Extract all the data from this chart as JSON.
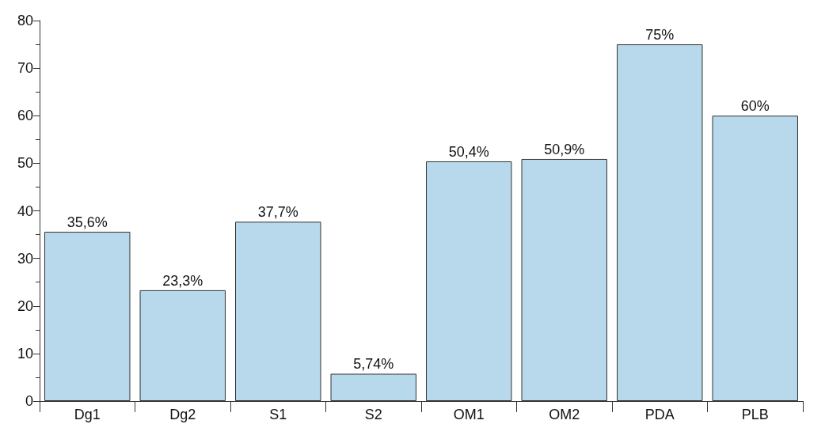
{
  "chart_data": {
    "type": "bar",
    "categories": [
      "Dg1",
      "Dg2",
      "S1",
      "S2",
      "OM1",
      "OM2",
      "PDA",
      "PLB"
    ],
    "values": [
      35.6,
      23.3,
      37.7,
      5.74,
      50.4,
      50.9,
      75,
      60
    ],
    "value_labels": [
      "35,6%",
      "23,3%",
      "37,7%",
      "5,74%",
      "50,4%",
      "50,9%",
      "75%",
      "60%"
    ],
    "color": "#b8d8eb",
    "ylim": [
      0,
      80
    ],
    "yticks": [
      0,
      10,
      20,
      30,
      40,
      50,
      60,
      70,
      80
    ],
    "grid": false
  }
}
